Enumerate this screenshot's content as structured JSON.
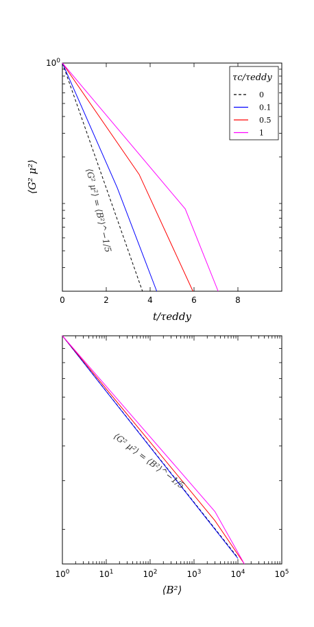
{
  "chart_data": [
    {
      "type": "line",
      "xscale": "linear",
      "yscale": "log",
      "xlim": [
        0,
        10
      ],
      "ylim": [
        0.02,
        1
      ],
      "xticks": [
        "0",
        "2",
        "4",
        "6",
        "8"
      ],
      "yticks": [
        "10^0"
      ],
      "xlabel": "t/τeddy",
      "ylabel": "⟨G² μ²⟩",
      "legend": {
        "title": "τc/τeddy",
        "placement": "top-right"
      },
      "series": [
        {
          "name": "0",
          "color": "#000000",
          "dash": "dashed",
          "x": [
            0,
            3.65
          ],
          "y": [
            1,
            0.02
          ]
        },
        {
          "name": "0.1",
          "color": "#0000ff",
          "dash": "solid",
          "x": [
            0,
            2.5,
            4.3
          ],
          "y": [
            1,
            0.118,
            0.02
          ]
        },
        {
          "name": "0.5",
          "color": "#ff0000",
          "dash": "solid",
          "x": [
            0,
            3.5,
            5.95
          ],
          "y": [
            1,
            0.148,
            0.02
          ]
        },
        {
          "name": "1",
          "color": "#ff00ff",
          "dash": "solid",
          "x": [
            0,
            5.6,
            7.1
          ],
          "y": [
            1,
            0.082,
            0.02
          ]
        }
      ],
      "annotation": {
        "text": "⟨G² μ²⟩ = ⟨B²⟩^−1/5"
      }
    },
    {
      "type": "line",
      "xscale": "log",
      "yscale": "log",
      "xlim": [
        1,
        100000
      ],
      "ylim": [
        0.15,
        1
      ],
      "xticks": [
        "10^0",
        "10^1",
        "10^2",
        "10^3",
        "10^4",
        "10^5"
      ],
      "xlabel": "⟨B²⟩",
      "series": [
        {
          "name": "0",
          "color": "#000000",
          "dash": "dashed",
          "x": [
            1,
            10000
          ],
          "y": [
            1,
            0.158
          ]
        },
        {
          "name": "0.1",
          "color": "#0000ff",
          "dash": "solid",
          "x": [
            1,
            10000
          ],
          "y": [
            1,
            0.157
          ]
        },
        {
          "name": "0.5",
          "color": "#ff0000",
          "dash": "solid",
          "x": [
            1,
            3000,
            14000
          ],
          "y": [
            1,
            0.215,
            0.15
          ]
        },
        {
          "name": "1",
          "color": "#ff00ff",
          "dash": "solid",
          "x": [
            1,
            3000,
            14000
          ],
          "y": [
            1,
            0.232,
            0.15
          ]
        }
      ],
      "annotation": {
        "text": "⟨G² μ²⟩ = ⟨B²⟩^−1/5"
      }
    }
  ]
}
